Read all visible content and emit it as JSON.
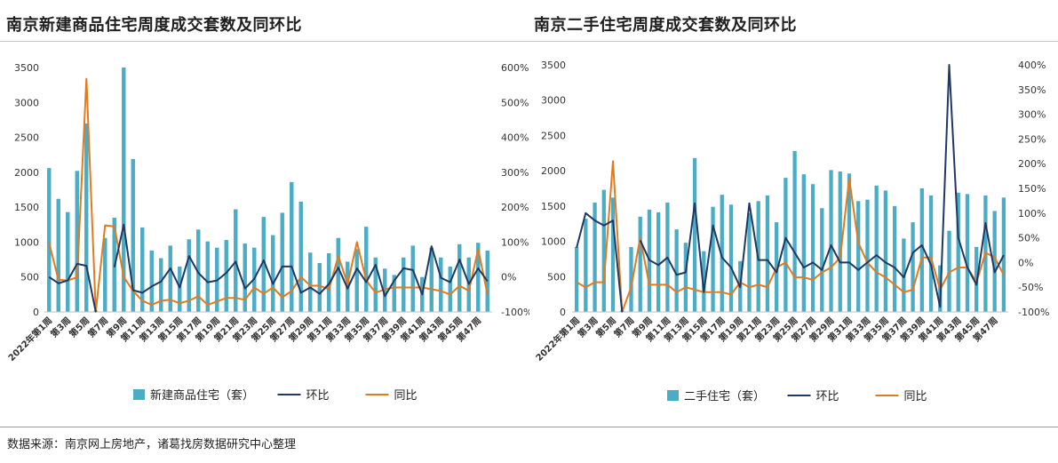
{
  "page": {
    "source": "数据来源：南京网上房地产，诸葛找房数据研究中心整理"
  },
  "chart_data": [
    {
      "type": "bar",
      "title": "南京新建商品住宅周度成交套数及同环比",
      "ylim": [
        0,
        3500
      ],
      "y_ticks": [
        "3500",
        "3000",
        "2500",
        "2000",
        "1500",
        "1000",
        "500",
        "0"
      ],
      "y2lim": [
        -100,
        600
      ],
      "y2_ticks": [
        "600%",
        "500%",
        "400%",
        "300%",
        "200%",
        "100%",
        "0%",
        "-100%"
      ],
      "categories": [
        "2022年第1周",
        "第2周",
        "第3周",
        "第4周",
        "第5周",
        "第6周",
        "第7周",
        "第8周",
        "第9周",
        "第10周",
        "第11周",
        "第12周",
        "第13周",
        "第14周",
        "第15周",
        "第16周",
        "第17周",
        "第18周",
        "第19周",
        "第20周",
        "第21周",
        "第22周",
        "第23周",
        "第24周",
        "第25周",
        "第26周",
        "第27周",
        "第28周",
        "第29周",
        "第30周",
        "第31周",
        "第32周",
        "第33周",
        "第34周",
        "第35周",
        "第36周",
        "第37周",
        "第38周",
        "第39周",
        "第40周",
        "第41周",
        "第42周",
        "第43周",
        "第44周",
        "第45周",
        "第46周",
        "第47周",
        "第48周"
      ],
      "x_tick_labels": [
        "2022年第1周",
        "第3周",
        "第5周",
        "第7周",
        "第9周",
        "第11周",
        "第13周",
        "第15周",
        "第17周",
        "第19周",
        "第21周",
        "第23周",
        "第25周",
        "第27周",
        "第29周",
        "第31周",
        "第33周",
        "第35周",
        "第37周",
        "第39周",
        "第41周",
        "第43周",
        "第45周",
        "第47周"
      ],
      "series": [
        {
          "name": "新建商品住宅（套）",
          "kind": "bar",
          "axis": "left",
          "color": "#4bacc6",
          "values": [
            2060,
            1620,
            1430,
            2020,
            2700,
            20,
            1060,
            1350,
            3500,
            2190,
            1210,
            880,
            770,
            950,
            650,
            1040,
            1180,
            1010,
            920,
            1030,
            1470,
            980,
            920,
            1360,
            1100,
            1420,
            1860,
            1580,
            850,
            700,
            840,
            1060,
            720,
            900,
            1220,
            780,
            620,
            530,
            780,
            950,
            500,
            920,
            780,
            650,
            970,
            780,
            990,
            880
          ]
        },
        {
          "name": "环比",
          "kind": "line",
          "axis": "right",
          "color": "#1f3864",
          "values": [
            0,
            -18,
            -10,
            38,
            32,
            -100,
            null,
            28,
            150,
            -38,
            -45,
            -27,
            -13,
            25,
            -30,
            60,
            12,
            -15,
            -10,
            12,
            44,
            -33,
            -5,
            48,
            -20,
            30,
            30,
            -45,
            -30,
            -48,
            -20,
            27,
            -33,
            25,
            -15,
            35,
            -55,
            -10,
            25,
            20,
            -50,
            88,
            -2,
            -15,
            50,
            -20,
            25,
            -12
          ]
        },
        {
          "name": "同比",
          "kind": "line",
          "axis": "right",
          "color": "#e07b1f",
          "values": [
            98,
            -8,
            -10,
            -1,
            568,
            -100,
            148,
            145,
            0,
            -40,
            -68,
            -80,
            -68,
            -65,
            -75,
            -68,
            -55,
            -80,
            -70,
            -60,
            -60,
            -65,
            -30,
            -48,
            -30,
            -58,
            -40,
            0,
            -25,
            -25,
            -35,
            60,
            -20,
            100,
            -10,
            -45,
            -35,
            -30,
            -30,
            -30,
            -30,
            -35,
            -40,
            -50,
            -25,
            -40,
            80,
            -50
          ]
        }
      ]
    },
    {
      "type": "bar",
      "title": "南京二手住宅周度成交套数及同环比",
      "ylim": [
        0,
        3500
      ],
      "y_ticks": [
        "3500",
        "3000",
        "2500",
        "2000",
        "1500",
        "1000",
        "500",
        "0"
      ],
      "y2lim": [
        -100,
        400
      ],
      "y2_ticks": [
        "400%",
        "350%",
        "300%",
        "250%",
        "200%",
        "150%",
        "100%",
        "50%",
        "0%",
        "-50%",
        "-100%"
      ],
      "categories": [
        "2022年第1周",
        "第2周",
        "第3周",
        "第4周",
        "第5周",
        "第6周",
        "第7周",
        "第8周",
        "第9周",
        "第10周",
        "第11周",
        "第12周",
        "第13周",
        "第14周",
        "第15周",
        "第16周",
        "第17周",
        "第18周",
        "第19周",
        "第20周",
        "第21周",
        "第22周",
        "第23周",
        "第24周",
        "第25周",
        "第26周",
        "第27周",
        "第28周",
        "第29周",
        "第30周",
        "第31周",
        "第32周",
        "第33周",
        "第34周",
        "第35周",
        "第36周",
        "第37周",
        "第38周",
        "第39周",
        "第40周",
        "第41周",
        "第42周",
        "第43周",
        "第44周",
        "第45周",
        "第46周",
        "第47周",
        "第48周"
      ],
      "x_tick_labels": [
        "2022年第1周",
        "第3周",
        "第5周",
        "第7周",
        "第9周",
        "第11周",
        "第13周",
        "第15周",
        "第17周",
        "第19周",
        "第21周",
        "第23周",
        "第25周",
        "第27周",
        "第29周",
        "第31周",
        "第33周",
        "第35周",
        "第37周",
        "第39周",
        "第41周",
        "第43周",
        "第45周",
        "第47周"
      ],
      "series": [
        {
          "name": "二手住宅（套）",
          "kind": "bar",
          "axis": "left",
          "color": "#4bacc6",
          "values": [
            920,
            1320,
            1550,
            1730,
            1620,
            20,
            920,
            1350,
            1450,
            1410,
            1550,
            1170,
            980,
            2180,
            860,
            1490,
            1660,
            1520,
            720,
            1400,
            1570,
            1650,
            1270,
            1900,
            2280,
            1950,
            1810,
            1470,
            2010,
            1990,
            1960,
            1570,
            1590,
            1790,
            1720,
            1500,
            1040,
            1270,
            1750,
            1650,
            660,
            1150,
            1690,
            1670,
            920,
            1650,
            1430,
            1620
          ]
        },
        {
          "name": "环比",
          "kind": "line",
          "axis": "right",
          "color": "#1f3864",
          "values": [
            30,
            100,
            85,
            75,
            85,
            -100,
            null,
            45,
            5,
            -5,
            10,
            -25,
            -20,
            120,
            -60,
            75,
            10,
            -10,
            -50,
            120,
            5,
            5,
            -20,
            50,
            20,
            -10,
            0,
            -15,
            35,
            0,
            0,
            -15,
            0,
            15,
            0,
            -10,
            -30,
            20,
            35,
            -5,
            -90,
            400,
            50,
            -10,
            -45,
            80,
            -20,
            15
          ]
        },
        {
          "name": "同比",
          "kind": "line",
          "axis": "right",
          "color": "#e07b1f",
          "values": [
            -40,
            -50,
            -40,
            -40,
            205,
            -100,
            -50,
            50,
            -45,
            -45,
            -45,
            -60,
            -50,
            -55,
            -60,
            -60,
            -60,
            -65,
            -40,
            -50,
            -45,
            -50,
            -10,
            0,
            -30,
            -30,
            -35,
            -20,
            -10,
            10,
            170,
            40,
            0,
            -20,
            -30,
            -45,
            -60,
            -55,
            10,
            10,
            -55,
            -20,
            -10,
            -10,
            -40,
            20,
            10,
            -25
          ]
        }
      ]
    }
  ]
}
